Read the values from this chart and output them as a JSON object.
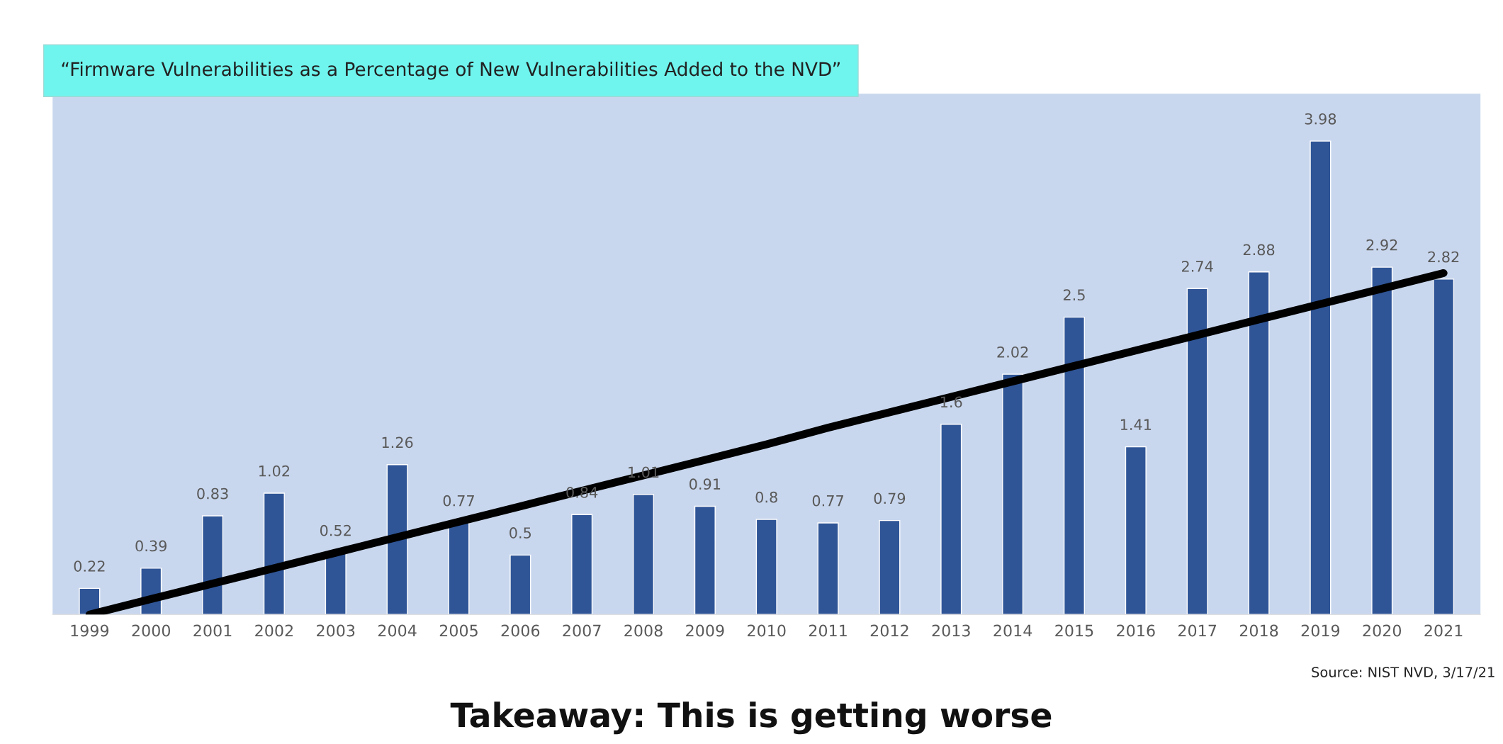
{
  "chart_data": {
    "type": "bar",
    "title": "“Firmware Vulnerabilities as a Percentage of New Vulnerabilities Added to the NVD”",
    "categories": [
      "1999",
      "2000",
      "2001",
      "2002",
      "2003",
      "2004",
      "2005",
      "2006",
      "2007",
      "2008",
      "2009",
      "2010",
      "2011",
      "2012",
      "2013",
      "2014",
      "2015",
      "2016",
      "2017",
      "2018",
      "2019",
      "2020",
      "2021"
    ],
    "series": [
      {
        "color": "#2f5597",
        "values": [
          0.22,
          0.39,
          0.83,
          1.02,
          0.52,
          1.26,
          0.77,
          0.5,
          0.84,
          1.01,
          0.91,
          0.8,
          0.77,
          0.79,
          1.6,
          2.02,
          2.5,
          1.41,
          2.74,
          2.88,
          3.98,
          2.92,
          2.82
        ],
        "value_labels": [
          "0.22",
          "0.39",
          "0.83",
          "1.02",
          "0.52",
          "1.26",
          "0.77",
          "0.5",
          "0.84",
          "1.01",
          "0.91",
          "0.8",
          "0.77",
          "0.79",
          "1.6",
          "2.02",
          "2.5",
          "1.41",
          "2.74",
          "2.88",
          "3.98",
          "2.92",
          "2.82"
        ]
      },
      {
        "type": "line",
        "color": "#000000",
        "values": [
          0.0,
          0.13,
          0.26,
          0.39,
          0.52,
          0.65,
          0.78,
          0.91,
          1.04,
          1.17,
          1.3,
          1.43,
          1.57,
          1.7,
          1.83,
          1.96,
          2.09,
          2.22,
          2.35,
          2.48,
          2.61,
          2.74,
          2.87
        ]
      }
    ],
    "grid": false,
    "legend": false,
    "annotations": [
      "Source: NIST NVD, 3/17/21",
      "Takeaway: This is getting worse"
    ]
  }
}
